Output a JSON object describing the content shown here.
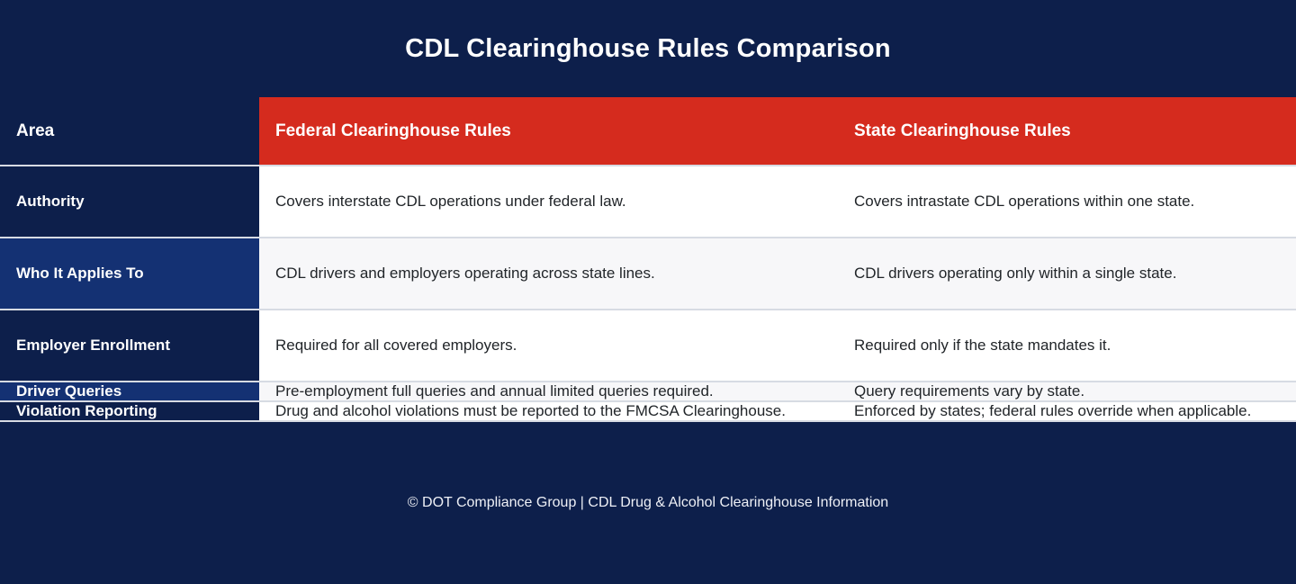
{
  "title": "CDL Clearinghouse Rules Comparison",
  "table": {
    "columns": [
      "Area",
      "Federal Clearinghouse Rules",
      "State Clearinghouse Rules"
    ],
    "rows": [
      {
        "area": "Authority",
        "federal": "Covers interstate CDL operations under federal law.",
        "state": "Covers intrastate CDL operations within one state."
      },
      {
        "area": "Who It Applies To",
        "federal": "CDL drivers and employers operating across state lines.",
        "state": "CDL drivers operating only within a single state."
      },
      {
        "area": "Employer Enrollment",
        "federal": "Required for all covered employers.",
        "state": "Required only if the state mandates it."
      },
      {
        "area": "Driver Queries",
        "federal": "Pre-employment full queries and annual limited queries required.",
        "state": "Query requirements vary by state."
      },
      {
        "area": "Violation Reporting",
        "federal": "Drug and alcohol violations must be reported to the FMCSA Clearinghouse.",
        "state": "Enforced by states; federal rules override when applicable."
      }
    ]
  },
  "footer": {
    "text": "© DOT Compliance Group | CDL Drug & Alcohol Clearinghouse Information"
  },
  "colors": {
    "navy": "#0d1f4b",
    "navy_light": "#143173",
    "red": "#d52b1e",
    "row": "#ffffff",
    "row_alt": "#f7f7f9"
  }
}
